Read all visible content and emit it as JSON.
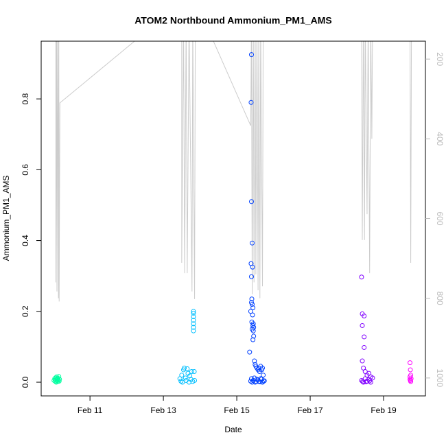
{
  "chart_data": {
    "type": "scatter",
    "title": "ATOM2 Northbound Ammonium_PM1_AMS",
    "x_label": "Date",
    "y_label": "Ammonium_PM1_AMS",
    "xlim": [
      9.67,
      20.14
    ],
    "ylim": [
      -0.0387,
      0.963
    ],
    "y2lim": [
      1045,
      155
    ],
    "xticks": [
      {
        "value": 11,
        "label": "Feb 11"
      },
      {
        "value": 13,
        "label": "Feb 13"
      },
      {
        "value": 15,
        "label": "Feb 15"
      },
      {
        "value": 17,
        "label": "Feb 17"
      },
      {
        "value": 19,
        "label": "Feb 19"
      }
    ],
    "yticks": [
      {
        "value": 0,
        "label": "0.0"
      },
      0.2,
      0.4,
      0.6,
      0.8
    ],
    "y2ticks": [
      200,
      400,
      600,
      800,
      1000
    ],
    "series": [
      {
        "type": "line",
        "axis": "y2",
        "color": "#cccccc",
        "x": [
          10.07,
          10.07,
          10.09,
          10.1,
          10.12,
          10.14,
          10.15,
          10.16,
          10.18,
          12.28,
          12.9,
          13.5,
          13.5,
          13.55,
          13.58,
          13.62,
          13.65,
          13.7,
          13.78,
          13.8,
          13.85,
          13.87,
          14.1,
          15.38,
          15.4,
          15.42,
          15.45,
          15.47,
          15.5,
          15.52,
          15.55,
          15.58,
          15.6,
          15.63,
          15.65,
          15.7,
          15.72,
          18.4,
          18.42,
          18.45,
          18.48,
          18.5,
          18.55,
          18.58,
          18.62,
          18.65,
          18.68,
          18.7,
          19.72,
          19.74,
          19.76
        ],
        "values": [
          100,
          760,
          100,
          783,
          100,
          800,
          100,
          808,
          310,
          150,
          100,
          100,
          711,
          100,
          737,
          100,
          737,
          100,
          783,
          100,
          802,
          100,
          100,
          367,
          100,
          790,
          100,
          760,
          100,
          740,
          100,
          780,
          100,
          800,
          100,
          770,
          100,
          100,
          654,
          100,
          654,
          100,
          589,
          100,
          737,
          100,
          400,
          100,
          100,
          711,
          100
        ]
      },
      {
        "type": "scatter",
        "color": "#00ffa0",
        "x": [
          10.02,
          10.04,
          10.05,
          10.06,
          10.07,
          10.08,
          10.09,
          10.1,
          10.11,
          10.12,
          10.13,
          10.14,
          10.15,
          10.16,
          10.17
        ],
        "values": [
          0.005,
          0.01,
          0.003,
          0.012,
          0.007,
          0.0,
          0.015,
          0.004,
          0.009,
          0.002,
          0.011,
          0.006,
          0.016,
          0.003,
          0.008
        ]
      },
      {
        "type": "scatter",
        "color": "#00bfff",
        "x": [
          13.45,
          13.48,
          13.5,
          13.52,
          13.55,
          13.57,
          13.6,
          13.62,
          13.65,
          13.67,
          13.7,
          13.72,
          13.75,
          13.77,
          13.8,
          13.82,
          13.82,
          13.82,
          13.82,
          13.82,
          13.82,
          13.82,
          13.84,
          13.85
        ],
        "values": [
          0.01,
          0.003,
          0.02,
          0.0,
          0.035,
          0.04,
          0.012,
          0.005,
          0.038,
          0.025,
          0.0,
          0.018,
          0.008,
          0.03,
          0.002,
          0.145,
          0.155,
          0.165,
          0.175,
          0.185,
          0.195,
          0.2,
          0.03,
          0.005
        ]
      },
      {
        "type": "scatter",
        "color": "#0040ff",
        "x": [
          15.35,
          15.4,
          15.39,
          15.4,
          15.42,
          15.39,
          15.43,
          15.4,
          15.41,
          15.4,
          15.42,
          15.44,
          15.38,
          15.43,
          15.41,
          15.45,
          15.44,
          15.46,
          15.42,
          15.45,
          15.46,
          15.44,
          15.48,
          15.5,
          15.52,
          15.55,
          15.58,
          15.6,
          15.62,
          15.65,
          15.68,
          15.7,
          15.72,
          15.4,
          15.45,
          15.5,
          15.55,
          15.6,
          15.65,
          15.7,
          15.75,
          15.38,
          15.42,
          15.48,
          15.53,
          15.58,
          15.63,
          15.68,
          15.73
        ],
        "values": [
          0.085,
          0.925,
          0.79,
          0.51,
          0.393,
          0.335,
          0.325,
          0.298,
          0.235,
          0.225,
          0.22,
          0.21,
          0.2,
          0.19,
          0.17,
          0.165,
          0.16,
          0.155,
          0.15,
          0.145,
          0.13,
          0.12,
          0.06,
          0.05,
          0.045,
          0.04,
          0.035,
          0.04,
          0.03,
          0.045,
          0.035,
          0.04,
          0.02,
          0.01,
          0.005,
          0.0,
          0.008,
          0.002,
          0.01,
          0.0,
          0.004,
          0.003,
          0.0,
          0.012,
          0.002,
          0.006,
          0.001,
          0.009,
          0.003
        ]
      },
      {
        "type": "scatter",
        "color": "#8000ff",
        "x": [
          18.4,
          18.42,
          18.47,
          18.42,
          18.47,
          18.47,
          18.42,
          18.45,
          18.5,
          18.55,
          18.6,
          18.65,
          18.4,
          18.45,
          18.5,
          18.55,
          18.6,
          18.65,
          18.7,
          18.43,
          18.52,
          18.62
        ],
        "values": [
          0.297,
          0.193,
          0.187,
          0.16,
          0.128,
          0.098,
          0.06,
          0.04,
          0.03,
          0.02,
          0.025,
          0.015,
          0.005,
          0.0,
          0.01,
          0.003,
          0.008,
          0.0,
          0.012,
          0.002,
          0.001,
          0.004
        ]
      },
      {
        "type": "scatter",
        "color": "#ff00ff",
        "x": [
          19.72,
          19.73,
          19.74,
          19.72,
          19.75,
          19.73,
          19.74,
          19.72
        ],
        "values": [
          0.055,
          0.035,
          0.02,
          0.015,
          0.01,
          0.005,
          0.002,
          0.008
        ]
      }
    ]
  }
}
